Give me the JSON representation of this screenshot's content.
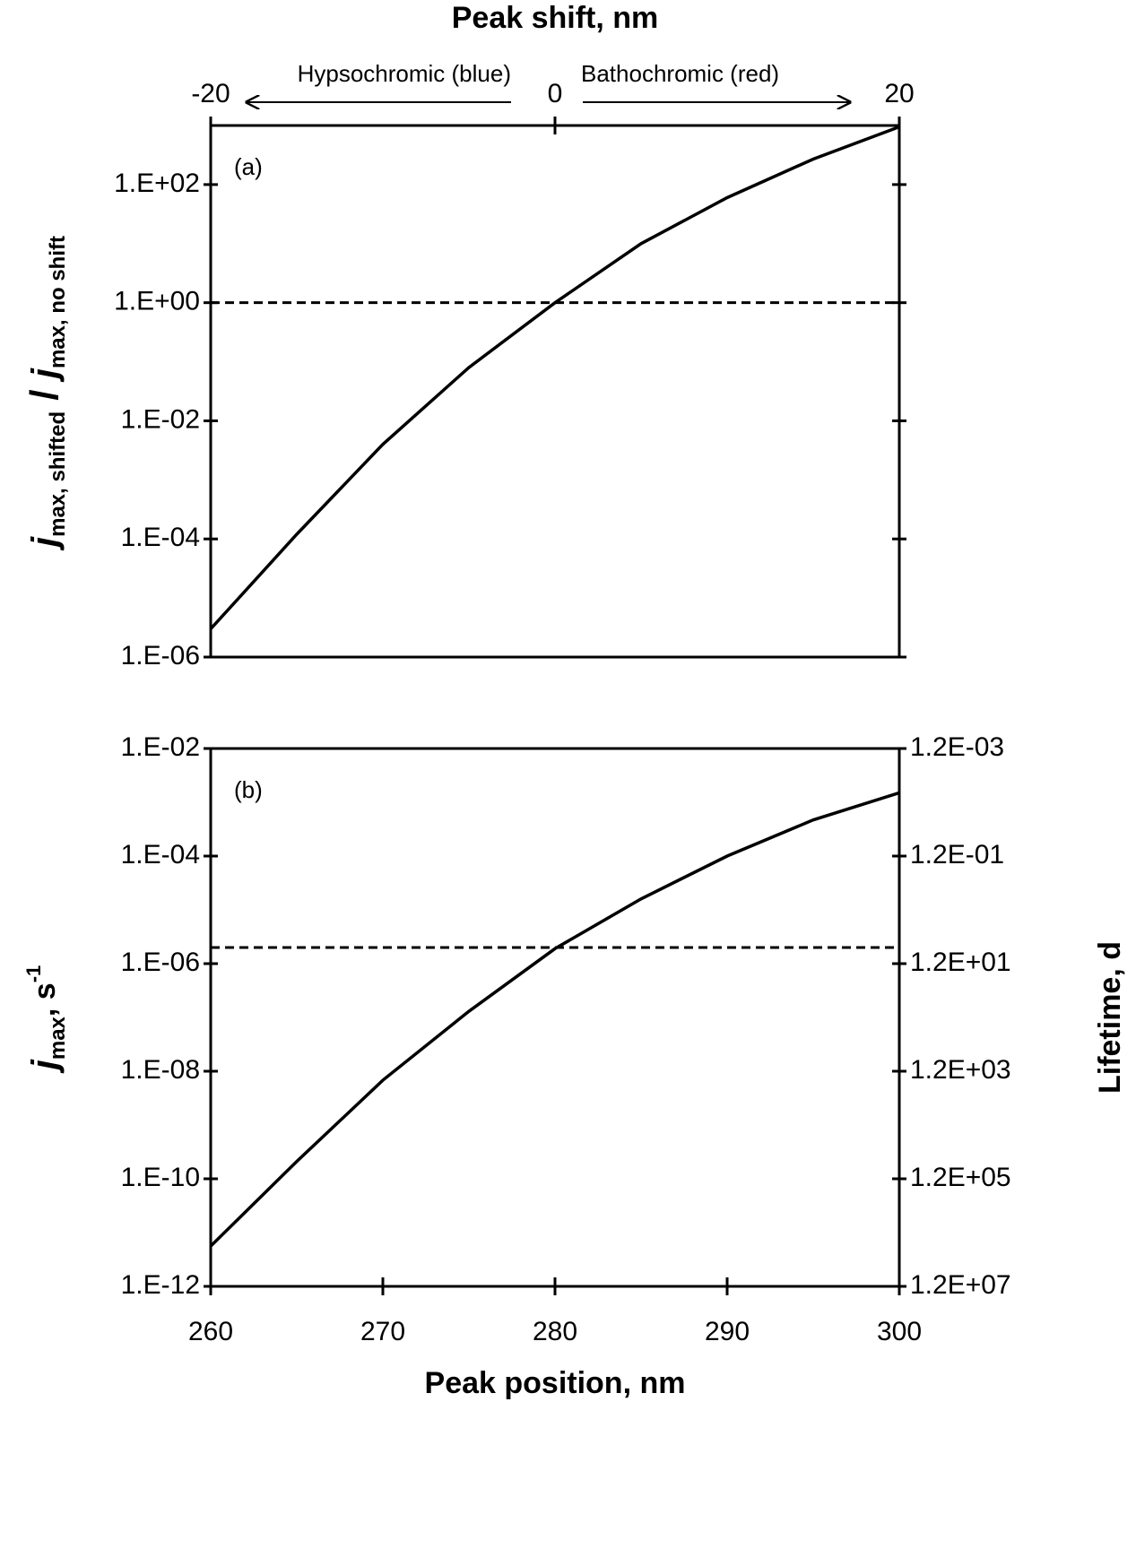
{
  "chart_data": [
    {
      "type": "line",
      "panel_label": "(a)",
      "x_label": "Peak shift, nm",
      "x_axis_position": "top",
      "xlim": [
        -20,
        20
      ],
      "xticks": [
        -20,
        0,
        20
      ],
      "y_label": [
        "j",
        "max, shifted",
        " / ",
        "j",
        "max, no shift"
      ],
      "y_scale": "log",
      "ylim": [
        1e-06,
        1000
      ],
      "yticks": [
        {
          "value": 1e-06,
          "label": "1.E-06"
        },
        {
          "value": 0.0001,
          "label": "1.E-04"
        },
        {
          "value": 0.01,
          "label": "1.E-02"
        },
        {
          "value": 1,
          "label": "1.E+00"
        },
        {
          "value": 100,
          "label": "1.E+02"
        }
      ],
      "annotations": [
        "Hypsochromic (blue)",
        "Bathochromic (red)"
      ],
      "reference_line": 1,
      "x": [
        -20,
        -15,
        -10,
        -5,
        0,
        5,
        10,
        15,
        20
      ],
      "values": [
        3e-06,
        0.00012,
        0.004,
        0.08,
        1,
        10,
        60,
        270,
        950
      ],
      "color": "#000000"
    },
    {
      "type": "line",
      "panel_label": "(b)",
      "x_label": "Peak position, nm",
      "x_axis_position": "bottom",
      "xlim": [
        260,
        300
      ],
      "xticks": [
        260,
        270,
        280,
        290,
        300
      ],
      "y_label": [
        "j",
        "max",
        ", s",
        "-1"
      ],
      "y_scale": "log",
      "ylim": [
        1e-12,
        0.01
      ],
      "yticks": [
        {
          "value": 1e-12,
          "label": "1.E-12"
        },
        {
          "value": 1e-10,
          "label": "1.E-10"
        },
        {
          "value": 1e-08,
          "label": "1.E-08"
        },
        {
          "value": 1e-06,
          "label": "1.E-06"
        },
        {
          "value": 0.0001,
          "label": "1.E-04"
        },
        {
          "value": 0.01,
          "label": "1.E-02"
        }
      ],
      "y2_label": "Lifetime, d",
      "y2_scale": "log",
      "y2_inverted": true,
      "y2lim": [
        0.0012,
        12000000
      ],
      "y2ticks": [
        {
          "value": 0.0012,
          "label": "1.2E-03"
        },
        {
          "value": 0.12,
          "label": "1.2E-01"
        },
        {
          "value": 12,
          "label": "1.2E+01"
        },
        {
          "value": 1200,
          "label": "1.2E+03"
        },
        {
          "value": 120000,
          "label": "1.2E+05"
        },
        {
          "value": 12000000,
          "label": "1.2E+07"
        }
      ],
      "reference_line": 2e-06,
      "x": [
        260,
        265,
        270,
        275,
        280,
        285,
        290,
        295,
        300
      ],
      "values": [
        5.6e-12,
        2.1e-10,
        6.8e-09,
        1.3e-07,
        1.9e-06,
        1.6e-05,
        0.0001,
        0.00047,
        0.0015
      ],
      "color": "#000000"
    }
  ]
}
